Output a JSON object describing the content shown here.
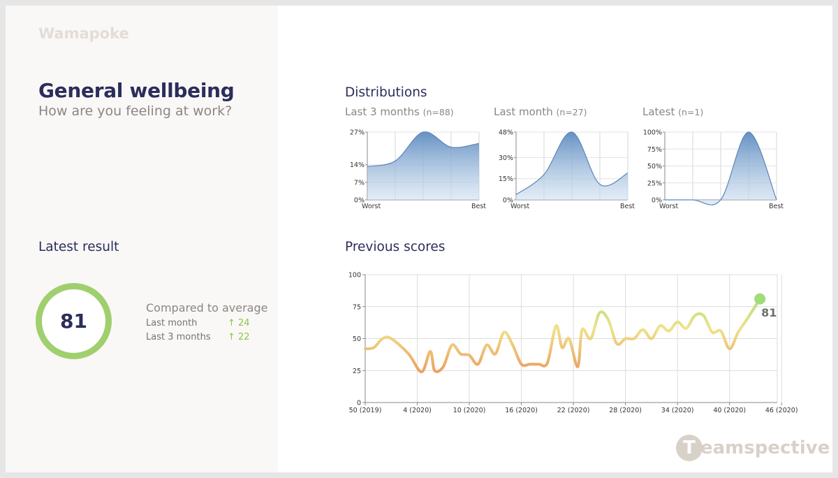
{
  "company": "Wamapoke",
  "title": "General wellbeing",
  "subtitle": "How are you feeling at work?",
  "latest": {
    "heading": "Latest result",
    "score": "81",
    "compared_title": "Compared to average",
    "rows": [
      {
        "label": "Last month",
        "delta": "↑ 24"
      },
      {
        "label": "Last 3 months",
        "delta": "↑ 22"
      }
    ],
    "ring_color": "#a0cf6e"
  },
  "distributions": {
    "heading": "Distributions",
    "x_labels": [
      "Worst",
      "Best"
    ],
    "charts": [
      {
        "label": "Last 3 months",
        "n": "(n=88)"
      },
      {
        "label": "Last month",
        "n": "(n=27)"
      },
      {
        "label": "Latest",
        "n": "(n=1)"
      }
    ]
  },
  "previous": {
    "heading": "Previous scores",
    "last_label": "81"
  },
  "brand": {
    "logo_letter": "T",
    "logo_word": "eamspective"
  },
  "colors": {
    "navy": "#2b2d5a",
    "muted": "#8c8680",
    "green": "#8cc63f",
    "dist_line": "#5b86b8",
    "latest_dot": "#a0dc78"
  },
  "chart_data": [
    {
      "type": "area",
      "title": "Last 3 months",
      "x": [
        1,
        2,
        3,
        4,
        5
      ],
      "x_tick_labels": [
        "Worst",
        "",
        "",
        "",
        "Best"
      ],
      "values": [
        13.3,
        15.5,
        27,
        21,
        22.5
      ],
      "yticks": [
        "0%",
        "7%",
        "14%",
        "27%"
      ],
      "ytick_values": [
        0,
        7,
        14,
        27
      ],
      "ylim": [
        0,
        27
      ],
      "grid": true
    },
    {
      "type": "area",
      "title": "Last month",
      "x": [
        1,
        2,
        3,
        4,
        5
      ],
      "x_tick_labels": [
        "Worst",
        "",
        "",
        "",
        "Best"
      ],
      "values": [
        3.7,
        18,
        48,
        11,
        19
      ],
      "yticks": [
        "0%",
        "15%",
        "30%",
        "48%"
      ],
      "ytick_values": [
        0,
        15,
        30,
        48
      ],
      "ylim": [
        0,
        48
      ],
      "grid": true
    },
    {
      "type": "area",
      "title": "Latest",
      "x": [
        1,
        2,
        3,
        4,
        5
      ],
      "x_tick_labels": [
        "Worst",
        "",
        "",
        "",
        "Best"
      ],
      "values": [
        0,
        0,
        0,
        100,
        0
      ],
      "yticks": [
        "0%",
        "25%",
        "50%",
        "75%",
        "100%"
      ],
      "ytick_values": [
        0,
        25,
        50,
        75,
        100
      ],
      "ylim": [
        0,
        100
      ],
      "grid": true
    },
    {
      "type": "line",
      "title": "Previous scores",
      "x_tick_labels": [
        "50 (2019)",
        "4 (2020)",
        "10 (2020)",
        "16 (2020)",
        "22 (2020)",
        "28 (2020)",
        "34 (2020)",
        "40 (2020)",
        "46 (2020)"
      ],
      "x_tick_index": [
        0,
        6,
        12,
        18,
        24,
        30,
        36,
        42,
        48
      ],
      "yticks": [
        0,
        25,
        50,
        75,
        100
      ],
      "ylim": [
        0,
        100
      ],
      "grid": true,
      "values": [
        42,
        43,
        50,
        50,
        38,
        24,
        40,
        25,
        28,
        45,
        38,
        37,
        30,
        45,
        38,
        55,
        45,
        30,
        30,
        30,
        31,
        60,
        43,
        50,
        28,
        57,
        50,
        70,
        65,
        46,
        50,
        50,
        57,
        50,
        60,
        56,
        63,
        58,
        68,
        68,
        55,
        56,
        42,
        55,
        65,
        81
      ],
      "x_index": [
        0,
        1,
        2,
        3,
        5,
        6.5,
        7.5,
        8,
        9,
        10,
        11,
        12,
        13,
        14,
        15,
        16,
        17,
        18,
        19,
        20,
        21,
        22,
        22.7,
        23.5,
        24.5,
        25,
        26,
        27,
        28,
        29,
        30,
        31,
        32,
        33,
        34,
        35,
        36,
        37,
        38,
        39,
        40,
        41,
        42,
        43,
        44,
        45.5
      ],
      "last_value_label": "81"
    }
  ]
}
